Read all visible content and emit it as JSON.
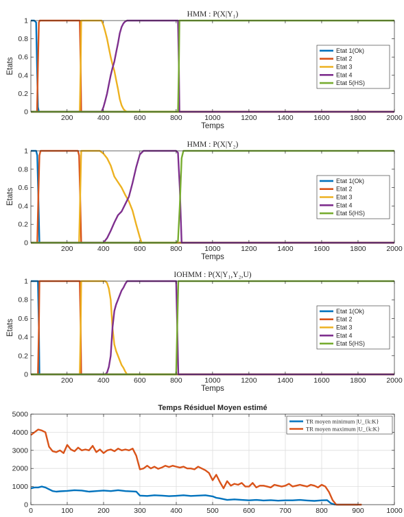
{
  "colors": {
    "etat1": "#0072BD",
    "etat2": "#D95319",
    "etat3": "#EDB120",
    "etat4": "#7E2F8E",
    "etat5": "#77AC30",
    "axis": "#262626",
    "grid": "#dddddd"
  },
  "chart_data": [
    {
      "type": "line",
      "title": "HMM : P(X|Y₁)",
      "xlabel": "Temps",
      "ylabel": "Etats",
      "xlim": [
        1,
        2000
      ],
      "ylim": [
        0,
        1
      ],
      "xticks": [
        200,
        400,
        600,
        800,
        1000,
        1200,
        1400,
        1600,
        1800,
        2000
      ],
      "yticks": [
        0,
        0.2,
        0.4,
        0.6,
        0.8,
        1
      ],
      "grid": false,
      "legend_position": "right",
      "series": [
        {
          "name": "Etat 1(Ok)",
          "x": [
            1,
            20,
            30,
            35,
            40,
            45,
            2000
          ],
          "y": [
            1,
            1,
            0.98,
            0.5,
            0.05,
            0,
            0
          ]
        },
        {
          "name": "Etat 2",
          "x": [
            1,
            35,
            40,
            45,
            50,
            270,
            275,
            278,
            2000
          ],
          "y": [
            0,
            0,
            0.5,
            0.98,
            1,
            1,
            0.5,
            0,
            0
          ]
        },
        {
          "name": "Etat 3",
          "x": [
            1,
            270,
            275,
            278,
            390,
            400,
            410,
            420,
            430,
            440,
            450,
            460,
            470,
            480,
            490,
            500,
            510,
            520,
            530,
            2000
          ],
          "y": [
            0,
            0,
            0.5,
            1,
            1,
            0.95,
            0.88,
            0.8,
            0.7,
            0.6,
            0.52,
            0.45,
            0.35,
            0.25,
            0.14,
            0.07,
            0.03,
            0.01,
            0,
            0
          ]
        },
        {
          "name": "Etat 4",
          "x": [
            1,
            390,
            400,
            410,
            420,
            430,
            440,
            450,
            460,
            470,
            480,
            490,
            500,
            510,
            520,
            530,
            810,
            815,
            818,
            2000
          ],
          "y": [
            0,
            0,
            0.05,
            0.12,
            0.2,
            0.3,
            0.4,
            0.48,
            0.55,
            0.65,
            0.75,
            0.86,
            0.93,
            0.97,
            0.99,
            1,
            1,
            0.5,
            0,
            0
          ]
        },
        {
          "name": "Etat 5(HS)",
          "x": [
            1,
            810,
            815,
            818,
            2000
          ],
          "y": [
            0,
            0,
            0.5,
            1,
            1
          ]
        }
      ]
    },
    {
      "type": "line",
      "title": "HMM : P(X|Y₂)",
      "xlabel": "Temps",
      "ylabel": "Etats",
      "xlim": [
        1,
        2000
      ],
      "ylim": [
        0,
        1
      ],
      "xticks": [
        200,
        400,
        600,
        800,
        1000,
        1200,
        1400,
        1600,
        1800,
        2000
      ],
      "yticks": [
        0,
        0.2,
        0.4,
        0.6,
        0.8,
        1
      ],
      "grid": false,
      "legend_position": "right",
      "series": [
        {
          "name": "Etat 1(Ok)",
          "x": [
            1,
            30,
            36,
            42,
            48,
            2000
          ],
          "y": [
            1,
            1,
            0.95,
            0.5,
            0,
            0
          ]
        },
        {
          "name": "Etat 2",
          "x": [
            1,
            36,
            42,
            48,
            54,
            260,
            266,
            272,
            278,
            2000
          ],
          "y": [
            0,
            0,
            0.5,
            0.95,
            1,
            1,
            0.95,
            0.5,
            0,
            0
          ]
        },
        {
          "name": "Etat 3",
          "x": [
            1,
            266,
            272,
            278,
            380,
            400,
            420,
            440,
            460,
            480,
            500,
            520,
            540,
            560,
            580,
            600,
            610,
            2000
          ],
          "y": [
            0,
            0,
            0.5,
            1,
            1,
            0.97,
            0.92,
            0.84,
            0.72,
            0.66,
            0.6,
            0.52,
            0.45,
            0.35,
            0.2,
            0.06,
            0,
            0
          ]
        },
        {
          "name": "Etat 4",
          "x": [
            1,
            400,
            420,
            440,
            460,
            480,
            500,
            520,
            540,
            560,
            580,
            600,
            620,
            800,
            810,
            820,
            830,
            2000
          ],
          "y": [
            0,
            0,
            0.05,
            0.13,
            0.22,
            0.3,
            0.34,
            0.42,
            0.5,
            0.65,
            0.82,
            0.96,
            1,
            1,
            0.98,
            0.6,
            0,
            0
          ]
        },
        {
          "name": "Etat 5(HS)",
          "x": [
            1,
            800,
            810,
            820,
            830,
            840,
            2000
          ],
          "y": [
            0,
            0,
            0.02,
            0.4,
            0.92,
            1,
            1
          ]
        }
      ]
    },
    {
      "type": "line",
      "title": "IOHMM : P(X|Y₁,Y₂,U)",
      "xlabel": "Temps",
      "ylabel": "Etats",
      "xlim": [
        1,
        2000
      ],
      "ylim": [
        0,
        1
      ],
      "xticks": [
        200,
        400,
        600,
        800,
        1000,
        1200,
        1400,
        1600,
        1800,
        2000
      ],
      "yticks": [
        0,
        0.2,
        0.4,
        0.6,
        0.8,
        1
      ],
      "grid": false,
      "legend_position": "right",
      "series": [
        {
          "name": "Etat 1(Ok)",
          "x": [
            1,
            40,
            45,
            48,
            2000
          ],
          "y": [
            1,
            1,
            0.5,
            0,
            0
          ]
        },
        {
          "name": "Etat 2",
          "x": [
            1,
            40,
            45,
            48,
            270,
            275,
            278,
            2000
          ],
          "y": [
            0,
            0,
            0.5,
            1,
            1,
            0.5,
            0,
            0
          ]
        },
        {
          "name": "Etat 3",
          "x": [
            1,
            270,
            275,
            278,
            410,
            420,
            430,
            440,
            450,
            460,
            470,
            480,
            490,
            500,
            510,
            520,
            530,
            2000
          ],
          "y": [
            0,
            0,
            0.5,
            1,
            1,
            0.98,
            0.92,
            0.8,
            0.5,
            0.32,
            0.25,
            0.2,
            0.15,
            0.1,
            0.07,
            0.03,
            0,
            0
          ]
        },
        {
          "name": "Etat 4",
          "x": [
            1,
            410,
            420,
            430,
            440,
            450,
            460,
            470,
            480,
            490,
            500,
            510,
            520,
            530,
            800,
            806,
            812,
            2000
          ],
          "y": [
            0,
            0,
            0.02,
            0.08,
            0.2,
            0.5,
            0.68,
            0.75,
            0.8,
            0.85,
            0.9,
            0.93,
            0.97,
            1,
            1,
            0.5,
            0,
            0
          ]
        },
        {
          "name": "Etat 5(HS)",
          "x": [
            1,
            800,
            806,
            812,
            2000
          ],
          "y": [
            0,
            0,
            0.5,
            1,
            1
          ]
        }
      ]
    },
    {
      "type": "line",
      "title": "Temps Résiduel Moyen estimé",
      "xlabel": "",
      "ylabel": "",
      "xlim": [
        0,
        1000
      ],
      "ylim": [
        0,
        5000
      ],
      "xticks": [
        0,
        100,
        200,
        300,
        400,
        500,
        600,
        700,
        800,
        900,
        1000
      ],
      "yticks": [
        0,
        1000,
        2000,
        3000,
        4000,
        5000
      ],
      "grid": true,
      "legend_position": "top-right",
      "series": [
        {
          "name": "TR moyen minimum |U_{k:K}",
          "x": [
            0,
            10,
            20,
            30,
            40,
            50,
            60,
            70,
            80,
            100,
            120,
            140,
            160,
            180,
            200,
            220,
            240,
            260,
            280,
            290,
            300,
            320,
            340,
            360,
            380,
            400,
            420,
            440,
            460,
            480,
            500,
            510,
            520,
            540,
            560,
            580,
            600,
            620,
            640,
            660,
            680,
            700,
            720,
            740,
            760,
            780,
            800,
            815,
            825,
            835,
            845,
            855,
            900
          ],
          "y": [
            900,
            950,
            950,
            1000,
            950,
            850,
            750,
            720,
            740,
            760,
            800,
            780,
            720,
            750,
            780,
            750,
            800,
            750,
            730,
            720,
            500,
            480,
            520,
            500,
            470,
            490,
            520,
            480,
            500,
            520,
            460,
            380,
            350,
            260,
            290,
            260,
            240,
            260,
            230,
            250,
            220,
            240,
            240,
            260,
            230,
            210,
            240,
            250,
            80,
            10,
            0,
            0,
            0
          ]
        },
        {
          "name": "TR moyen maximum |U_{k:K}",
          "x": [
            0,
            10,
            20,
            30,
            40,
            50,
            60,
            70,
            80,
            90,
            100,
            110,
            120,
            130,
            140,
            150,
            160,
            170,
            180,
            190,
            200,
            210,
            220,
            230,
            240,
            250,
            260,
            270,
            280,
            290,
            300,
            310,
            320,
            330,
            340,
            350,
            360,
            370,
            380,
            390,
            400,
            410,
            420,
            430,
            440,
            450,
            460,
            470,
            480,
            490,
            500,
            510,
            520,
            530,
            540,
            550,
            560,
            570,
            580,
            590,
            600,
            610,
            620,
            630,
            640,
            650,
            660,
            670,
            680,
            690,
            700,
            710,
            720,
            730,
            740,
            750,
            760,
            770,
            780,
            790,
            800,
            810,
            820,
            830,
            840,
            850,
            880,
            910
          ],
          "y": [
            3850,
            4000,
            4150,
            4100,
            4000,
            3200,
            2950,
            2900,
            3000,
            2850,
            3300,
            3050,
            2950,
            3150,
            3000,
            3050,
            3000,
            3250,
            2900,
            3050,
            2850,
            3000,
            3050,
            2950,
            3100,
            3000,
            3050,
            3000,
            3100,
            2700,
            1950,
            2000,
            2150,
            2000,
            2100,
            1980,
            2050,
            2150,
            2080,
            2150,
            2100,
            2050,
            2100,
            2000,
            2000,
            1950,
            2100,
            2000,
            1900,
            1750,
            1350,
            1650,
            1250,
            900,
            1300,
            1050,
            1150,
            1100,
            1200,
            1000,
            1000,
            1200,
            950,
            1050,
            1050,
            1000,
            950,
            1100,
            1050,
            1000,
            1050,
            1150,
            1000,
            1050,
            1100,
            1050,
            1000,
            1100,
            1050,
            950,
            1100,
            1000,
            700,
            250,
            0,
            0,
            0,
            0
          ]
        }
      ]
    }
  ]
}
